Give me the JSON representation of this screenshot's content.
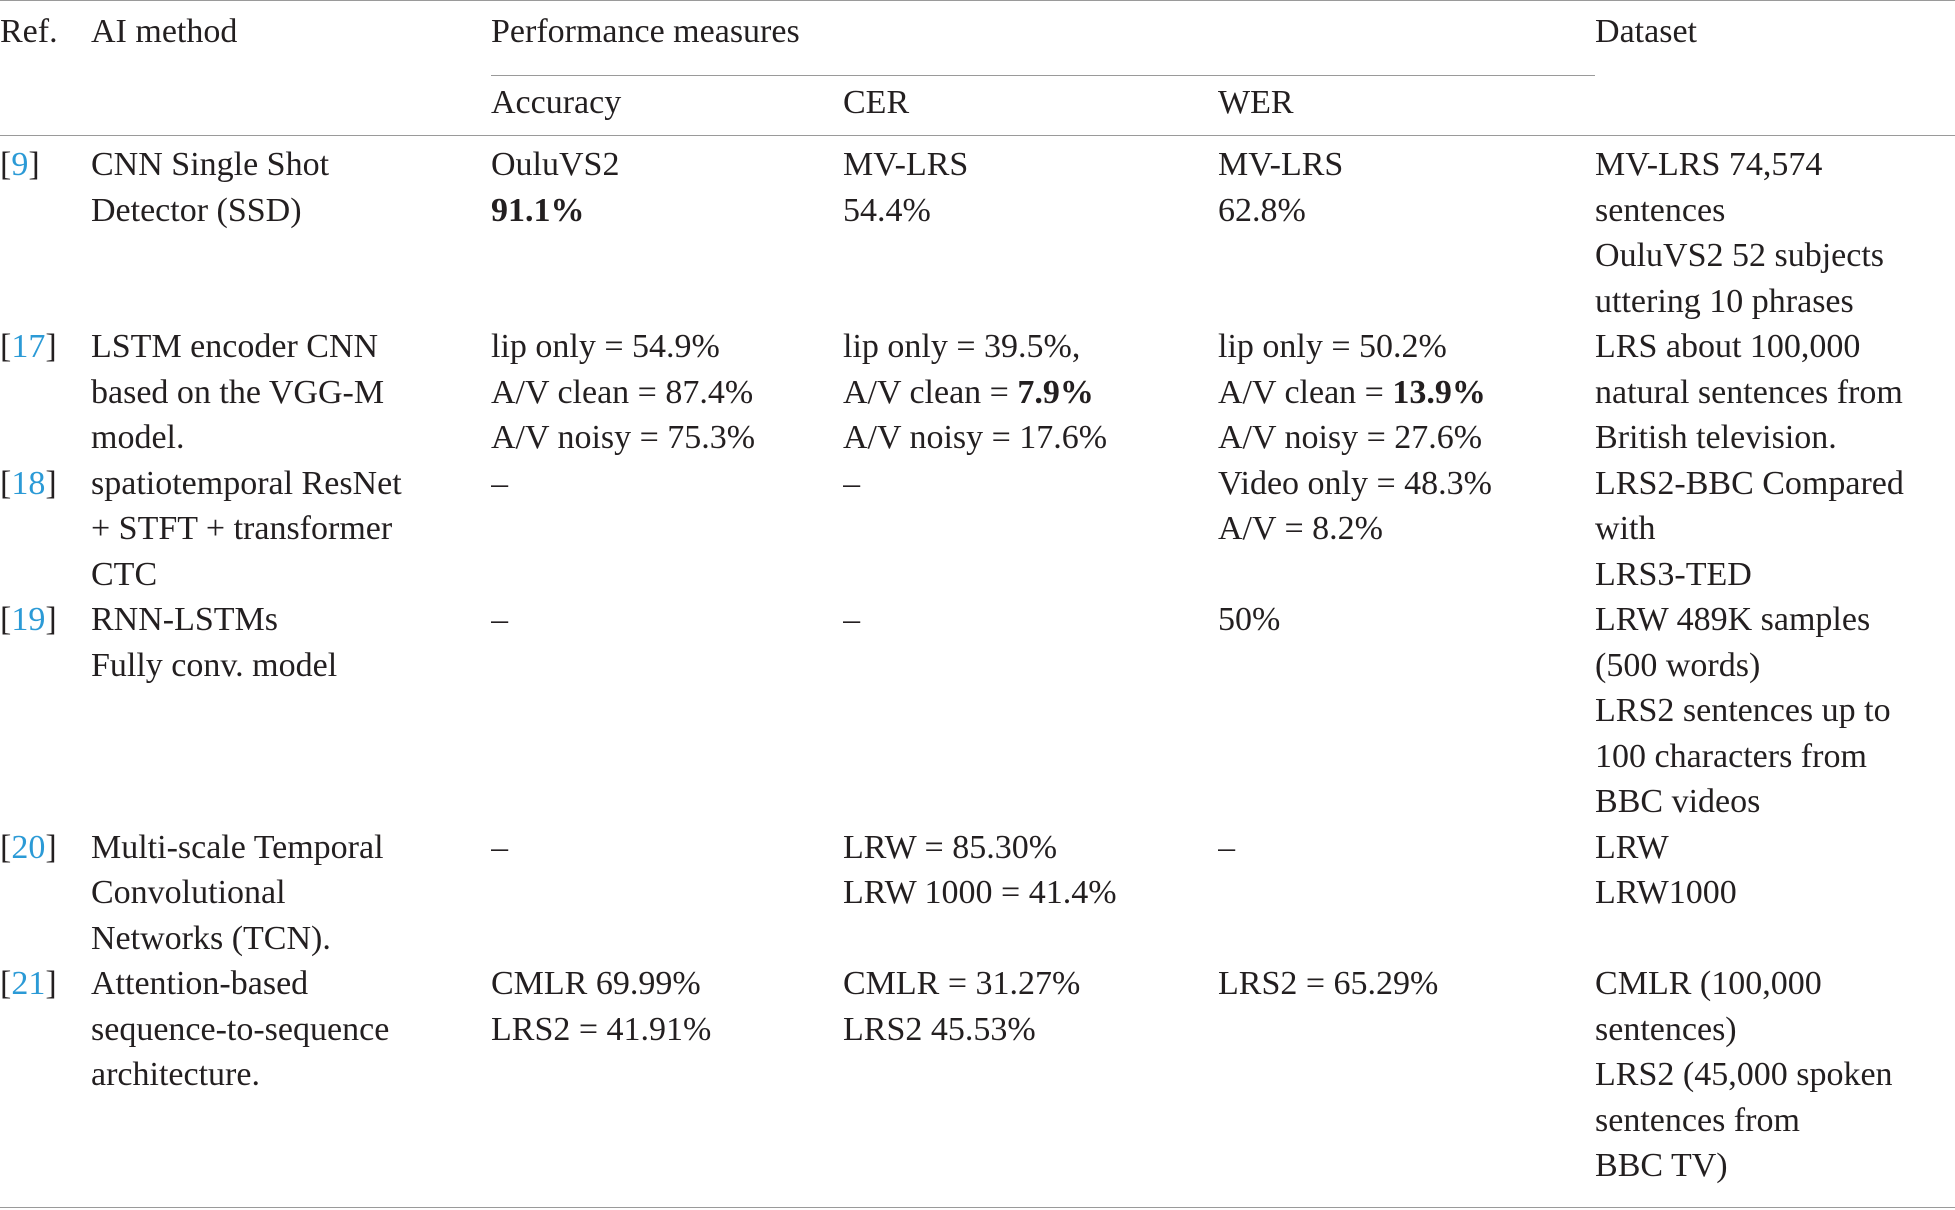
{
  "table": {
    "header": {
      "ref": "Ref.",
      "method": "AI method",
      "group": "Performance measures",
      "dataset": "Dataset",
      "sub": [
        "Accuracy",
        "CER",
        "WER"
      ]
    },
    "rows": [
      {
        "ref": [
          "[",
          {
            "text": "9",
            "link": true
          },
          "]"
        ],
        "cells": [
          [
            [
              "CNN Single Shot"
            ],
            [
              "Detector (SSD)"
            ]
          ],
          [
            [
              "OuluVS2"
            ],
            [
              {
                "text": "91.1%",
                "bold": true
              }
            ]
          ],
          [
            [
              "MV-LRS"
            ],
            [
              "54.4%"
            ]
          ],
          [
            [
              "MV-LRS"
            ],
            [
              "62.8%"
            ]
          ],
          [
            [
              "MV-LRS 74,574"
            ],
            [
              "sentences"
            ],
            [
              "OuluVS2 52 subjects"
            ],
            [
              "uttering 10 phrases"
            ]
          ]
        ]
      },
      {
        "ref": [
          "[",
          {
            "text": "17",
            "link": true
          },
          "]"
        ],
        "cells": [
          [
            [
              "LSTM encoder CNN"
            ],
            [
              "based on the VGG-M"
            ],
            [
              "model."
            ]
          ],
          [
            [
              "lip only = 54.9%"
            ],
            [
              "A/V clean = 87.4%"
            ],
            [
              "A/V noisy = 75.3%"
            ]
          ],
          [
            [
              "lip only = 39.5%,"
            ],
            [
              "A/V clean = ",
              {
                "text": "7.9%",
                "bold": true
              }
            ],
            [
              "A/V noisy = 17.6%"
            ]
          ],
          [
            [
              "lip only = 50.2%"
            ],
            [
              "A/V clean = ",
              {
                "text": "13.9%",
                "bold": true
              }
            ],
            [
              "A/V noisy = 27.6%"
            ]
          ],
          [
            [
              "LRS about 100,000"
            ],
            [
              "natural sentences from"
            ],
            [
              "British television."
            ]
          ]
        ]
      },
      {
        "ref": [
          "[",
          {
            "text": "18",
            "link": true
          },
          "]"
        ],
        "cells": [
          [
            [
              "spatiotemporal ResNet"
            ],
            [
              "+ STFT + transformer"
            ],
            [
              "CTC"
            ]
          ],
          [
            [
              "–"
            ]
          ],
          [
            [
              "–"
            ]
          ],
          [
            [
              "Video only = 48.3%"
            ],
            [
              "A/V = 8.2%"
            ]
          ],
          [
            [
              "LRS2-BBC Compared"
            ],
            [
              "with"
            ],
            [
              "LRS3-TED"
            ]
          ]
        ]
      },
      {
        "ref": [
          "[",
          {
            "text": "19",
            "link": true
          },
          "]"
        ],
        "cells": [
          [
            [
              "RNN-LSTMs"
            ],
            [
              "Fully conv. model"
            ]
          ],
          [
            [
              "–"
            ]
          ],
          [
            [
              "–"
            ]
          ],
          [
            [
              "50%"
            ]
          ],
          [
            [
              "LRW 489K samples"
            ],
            [
              "(500 words)"
            ],
            [
              "LRS2 sentences up to"
            ],
            [
              "100 characters from"
            ],
            [
              "BBC videos"
            ]
          ]
        ]
      },
      {
        "ref": [
          "[",
          {
            "text": "20",
            "link": true
          },
          "]"
        ],
        "cells": [
          [
            [
              "Multi-scale Temporal"
            ],
            [
              "Convolutional"
            ],
            [
              "Networks (TCN)."
            ]
          ],
          [
            [
              "–"
            ]
          ],
          [
            [
              "LRW = 85.30%"
            ],
            [
              "LRW 1000 = 41.4%"
            ]
          ],
          [
            [
              "–"
            ]
          ],
          [
            [
              "LRW"
            ],
            [
              "LRW1000"
            ]
          ]
        ]
      },
      {
        "ref": [
          "[",
          {
            "text": "21",
            "link": true
          },
          "]"
        ],
        "cells": [
          [
            [
              "Attention-based"
            ],
            [
              "sequence-to-sequence"
            ],
            [
              "architecture."
            ]
          ],
          [
            [
              "CMLR 69.99%"
            ],
            [
              "LRS2 = 41.91%"
            ]
          ],
          [
            [
              "CMLR = 31.27%"
            ],
            [
              "LRS2 45.53%"
            ]
          ],
          [
            [
              "LRS2 = 65.29%"
            ]
          ],
          [
            [
              "CMLR (100,000"
            ],
            [
              "sentences)"
            ],
            [
              "LRS2 (45,000 spoken"
            ],
            [
              "sentences from"
            ],
            [
              "BBC TV)"
            ]
          ]
        ]
      }
    ]
  }
}
